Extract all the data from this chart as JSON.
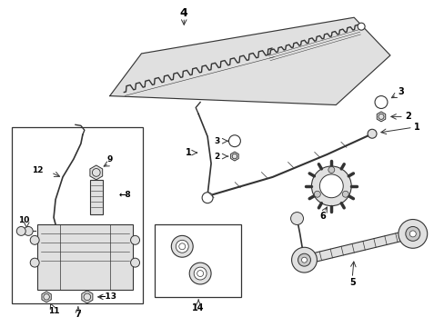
{
  "bg_color": "#ffffff",
  "fig_width": 4.89,
  "fig_height": 3.6,
  "dpi": 100,
  "line_color": "#333333",
  "fill_light": "#e0e0e0",
  "fill_mid": "#c8c8c8"
}
